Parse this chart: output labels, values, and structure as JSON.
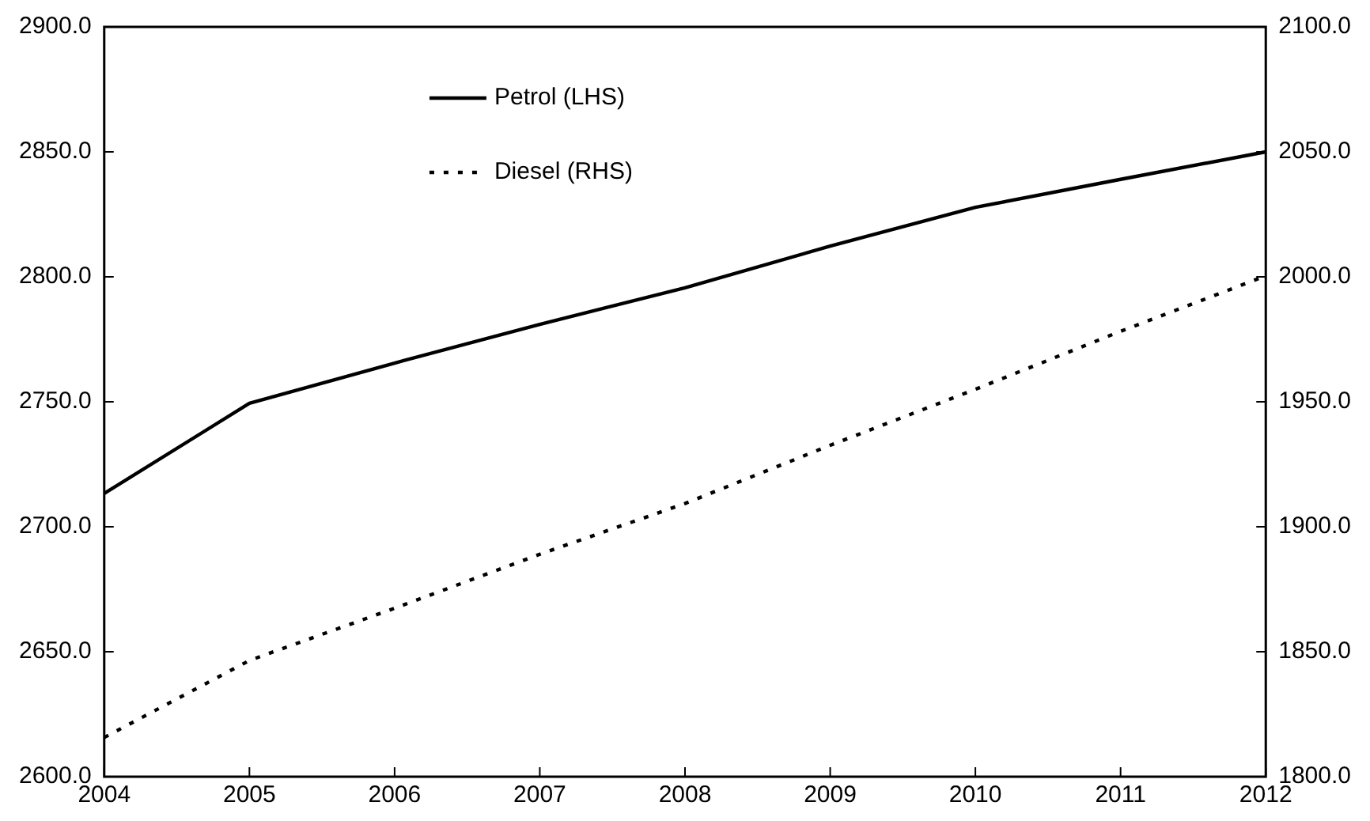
{
  "chart_data": {
    "type": "line",
    "x": [
      2004,
      2005,
      2006,
      2007,
      2008,
      2009,
      2010,
      2011,
      2012
    ],
    "series": [
      {
        "name": "Petrol (LHS)",
        "color": "#000000",
        "line_style": "solid",
        "values": [
          2713.3,
          2749.4,
          2765.5,
          2781,
          2795.6,
          2812.3,
          2827.8,
          2839,
          2850
        ]
      },
      {
        "name": "Diesel (RHS)",
        "color": "#000000",
        "line_style": "dotted",
        "axis": "y2",
        "values": [
          1815.7,
          1846.5,
          1867.4,
          1889,
          1909.3,
          1932.6,
          1955,
          1978.2,
          2000.4
        ]
      }
    ],
    "xlim": [
      2004,
      2012
    ],
    "xticks": [
      2004,
      2005,
      2006,
      2007,
      2008,
      2009,
      2010,
      2011,
      2012
    ],
    "ylim": [
      2600,
      2900
    ],
    "yticks": [
      {
        "value": 2600,
        "label": "2600.0"
      },
      {
        "value": 2650,
        "label": "2650.0"
      },
      {
        "value": 2700,
        "label": "2700.0"
      },
      {
        "value": 2750,
        "label": "2750.0"
      },
      {
        "value": 2800,
        "label": "2800.0"
      },
      {
        "value": 2850,
        "label": "2850.0"
      },
      {
        "value": 2900,
        "label": "2900.0"
      }
    ],
    "y2lim": [
      1800,
      2100
    ],
    "y2ticks": [
      {
        "value": 1800,
        "label": "1800.0"
      },
      {
        "value": 1850,
        "label": "1850.0"
      },
      {
        "value": 1900,
        "label": "1900.0"
      },
      {
        "value": 1950,
        "label": "1950.0"
      },
      {
        "value": 2000,
        "label": "2000.0"
      },
      {
        "value": 2050,
        "label": "2050.0"
      },
      {
        "value": 2100,
        "label": "2100.0"
      }
    ],
    "grid": false,
    "legend": "top",
    "marker": "none"
  }
}
